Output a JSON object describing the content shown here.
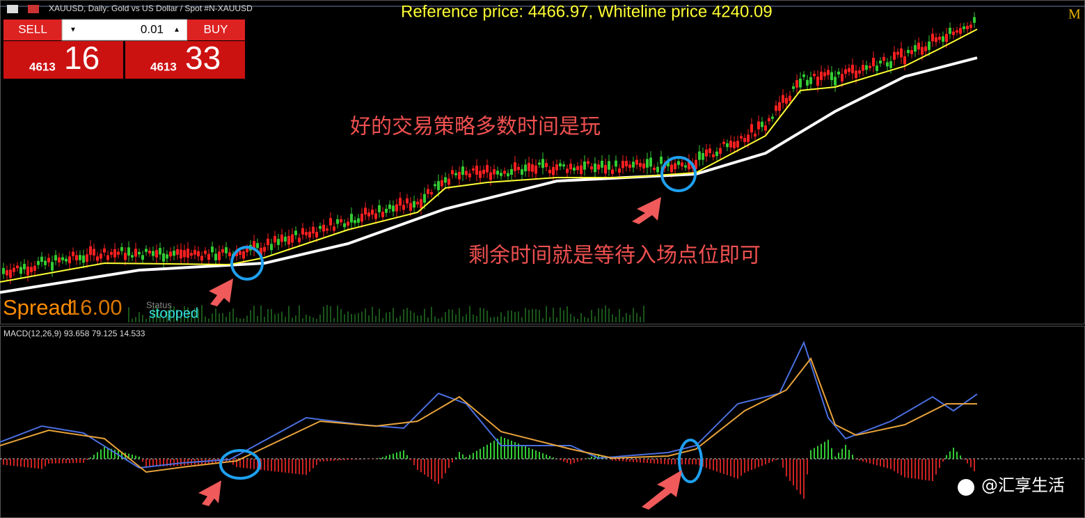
{
  "header": {
    "title": "XAUUSD, Daily:  Gold vs US Dollar / Spot #N-XAUUSD",
    "reference": "Reference price: 4466.97, Whiteline price 4240.09",
    "corner": "M"
  },
  "trade_panel": {
    "sell": "SELL",
    "lot": "0.01",
    "buy": "BUY",
    "sell_price": {
      "prefix": "4613",
      "big": "16"
    },
    "buy_price": {
      "prefix": "4613",
      "big": "33"
    }
  },
  "annotations": [
    "好的交易策略多数时间是玩",
    "剩余时间就是等待入场点位即可"
  ],
  "status": {
    "spread_label": "Spread",
    "spread_value": "16.00",
    "status_label": "Status",
    "status_value": "stopped"
  },
  "macd": {
    "label": "MACD(12,26,9) 93.658 79.125 14.533"
  },
  "watermark": "@汇享生活"
}
